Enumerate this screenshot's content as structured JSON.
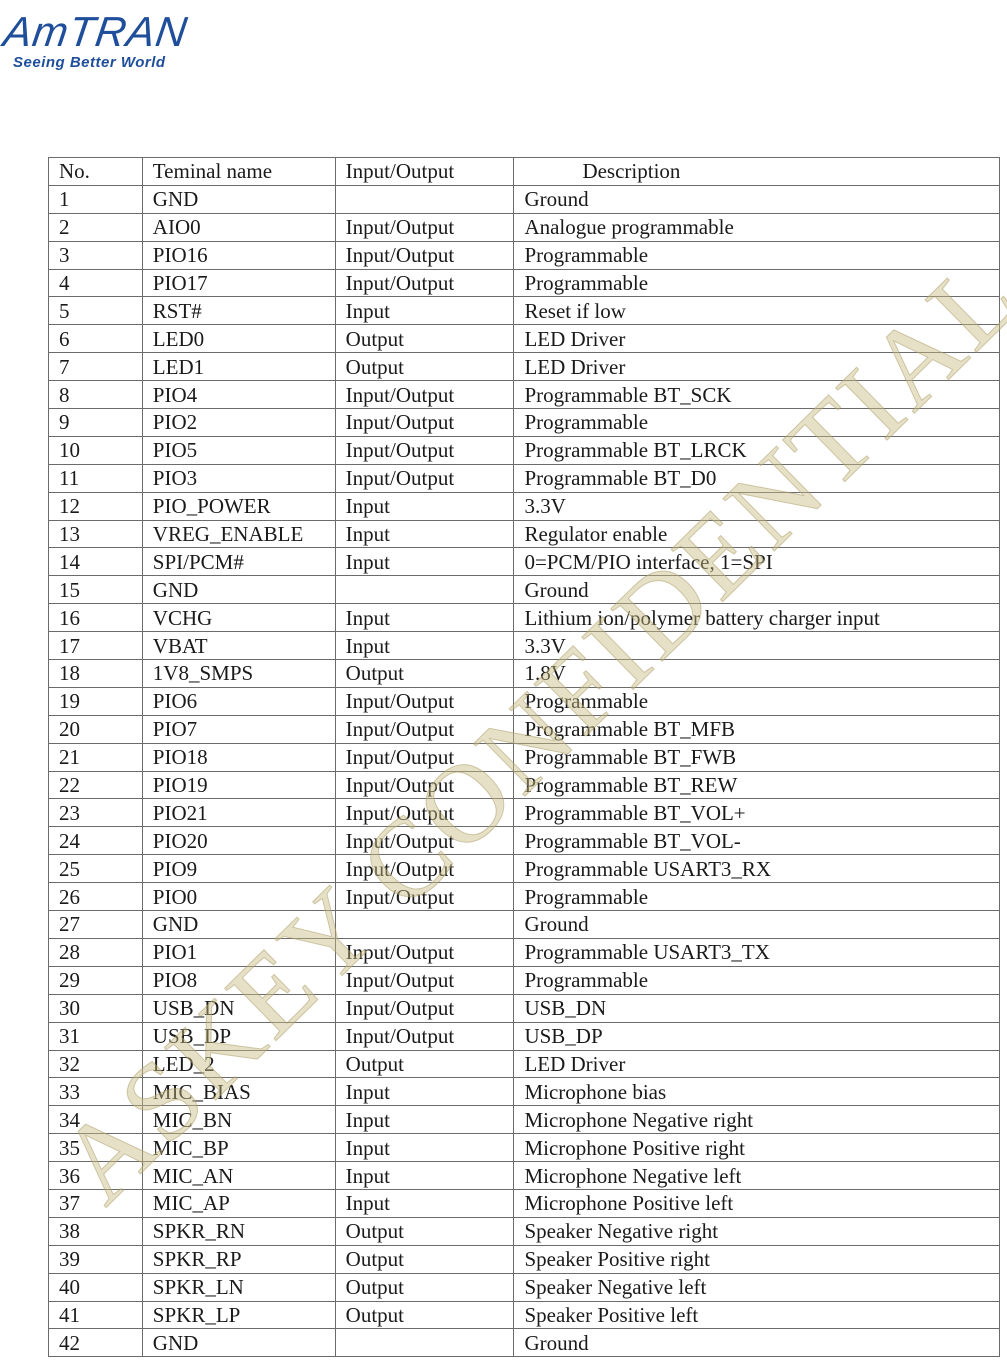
{
  "logo": {
    "brand": "AmTRAN",
    "tagline": "Seeing Better World",
    "color": "#1f4e9a"
  },
  "watermark": "ASKEY CONFIDENTIAL",
  "table": {
    "headers": [
      "No.",
      "Teminal name",
      "Input/Output",
      "Description"
    ],
    "rows": [
      [
        "1",
        "GND",
        "",
        "Ground"
      ],
      [
        "2",
        "AIO0",
        "Input/Output",
        "Analogue programmable"
      ],
      [
        "3",
        "PIO16",
        "Input/Output",
        "Programmable"
      ],
      [
        "4",
        "PIO17",
        "Input/Output",
        "Programmable"
      ],
      [
        "5",
        "RST#",
        "Input",
        "Reset if low"
      ],
      [
        "6",
        "LED0",
        "Output",
        "LED Driver"
      ],
      [
        "7",
        "LED1",
        "Output",
        "LED Driver"
      ],
      [
        "8",
        "PIO4",
        "Input/Output",
        "Programmable BT_SCK"
      ],
      [
        "9",
        "PIO2",
        "Input/Output",
        "Programmable"
      ],
      [
        "10",
        "PIO5",
        "Input/Output",
        "Programmable BT_LRCK"
      ],
      [
        "11",
        "PIO3",
        "Input/Output",
        "Programmable BT_D0"
      ],
      [
        "12",
        "PIO_POWER",
        "Input",
        "3.3V"
      ],
      [
        "13",
        "VREG_ENABLE",
        "Input",
        "Regulator enable"
      ],
      [
        "14",
        "SPI/PCM#",
        "Input",
        "0=PCM/PIO interface, 1=SPI"
      ],
      [
        "15",
        "GND",
        "",
        "Ground"
      ],
      [
        "16",
        "VCHG",
        "Input",
        "Lithium ion/polymer battery charger input"
      ],
      [
        "17",
        "VBAT",
        "Input",
        "3.3V"
      ],
      [
        "18",
        "1V8_SMPS",
        "Output",
        "1.8V"
      ],
      [
        "19",
        "PIO6",
        "Input/Output",
        "Programmable"
      ],
      [
        "20",
        "PIO7",
        "Input/Output",
        "Programmable BT_MFB"
      ],
      [
        "21",
        "PIO18",
        "Input/Output",
        "Programmable BT_FWB"
      ],
      [
        "22",
        "PIO19",
        "Input/Output",
        "Programmable BT_REW"
      ],
      [
        "23",
        "PIO21",
        "Input/Output",
        "Programmable BT_VOL+"
      ],
      [
        "24",
        "PIO20",
        "Input/Output",
        "Programmable BT_VOL-"
      ],
      [
        "25",
        "PIO9",
        "Input/Output",
        "Programmable USART3_RX"
      ],
      [
        "26",
        "PIO0",
        "Input/Output",
        "Programmable"
      ],
      [
        "27",
        "GND",
        "",
        "Ground"
      ],
      [
        "28",
        "PIO1",
        "Input/Output",
        "Programmable USART3_TX"
      ],
      [
        "29",
        "PIO8",
        "Input/Output",
        "Programmable"
      ],
      [
        "30",
        "USB_DN",
        "Input/Output",
        "USB_DN"
      ],
      [
        "31",
        "USB_DP",
        "Input/Output",
        "USB_DP"
      ],
      [
        "32",
        "LED_2",
        "Output",
        "LED Driver"
      ],
      [
        "33",
        "MIC_BIAS",
        "Input",
        "Microphone bias"
      ],
      [
        "34",
        "MIC_BN",
        "Input",
        "Microphone Negative right"
      ],
      [
        "35",
        "MIC_BP",
        "Input",
        "Microphone Positive right"
      ],
      [
        "36",
        "MIC_AN",
        "Input",
        "Microphone Negative left"
      ],
      [
        "37",
        "MIC_AP",
        "Input",
        "Microphone Positive left"
      ],
      [
        "38",
        "SPKR_RN",
        "Output",
        "Speaker Negative right"
      ],
      [
        "39",
        "SPKR_RP",
        "Output",
        "Speaker Positive right"
      ],
      [
        "40",
        "SPKR_LN",
        "Output",
        "Speaker Negative left"
      ],
      [
        "41",
        "SPKR_LP",
        "Output",
        "Speaker Positive left"
      ],
      [
        "42",
        "GND",
        "",
        "Ground"
      ]
    ]
  }
}
